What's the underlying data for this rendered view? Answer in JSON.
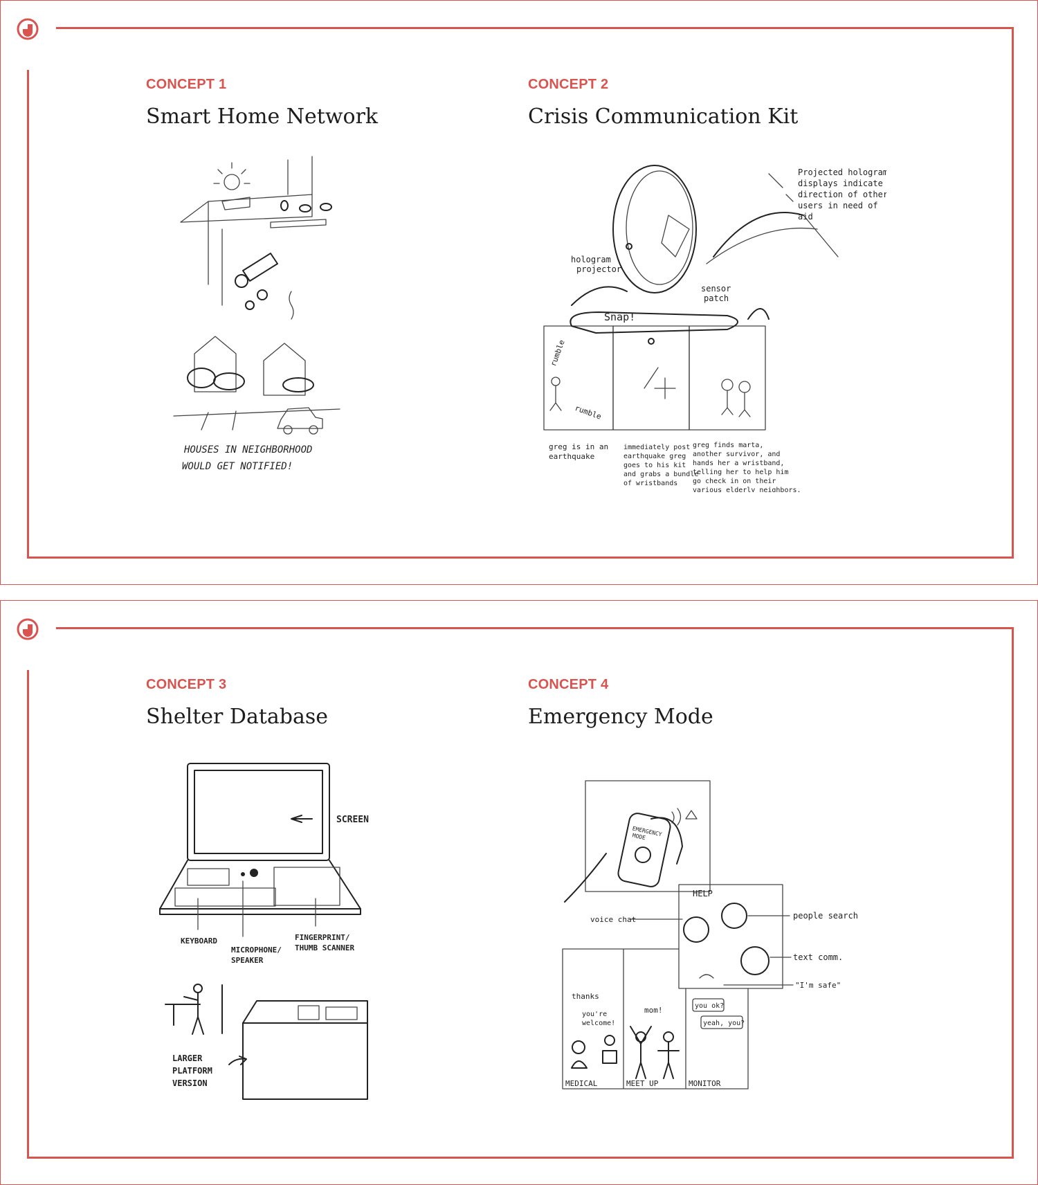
{
  "colors": {
    "accent": "#d9534f",
    "text": "#1d1d1d"
  },
  "slides": [
    {
      "concepts": [
        {
          "kicker": "CONCEPT 1",
          "title": "Smart Home Network",
          "sketch_notes": [
            "HOUSES IN NEIGHBORHOOD",
            "WOULD GET NOTIFIED!"
          ]
        },
        {
          "kicker": "CONCEPT 2",
          "title": "Crisis Communication Kit",
          "sketch_notes": [
            "Projected hologram",
            "displays indicate the",
            "direction of other",
            "users in need of",
            "aid",
            "hologram",
            "projector",
            "sensor",
            "patch",
            "Snap!",
            "rumble",
            "rumble",
            "greg is in an",
            "earthquake",
            "immediately post",
            "earthquake greg",
            "goes to his kit",
            "and grabs a bundle",
            "of wristbands",
            "greg finds marta,",
            "another survivor, and",
            "hands her a wristband,",
            "telling her to help him",
            "go check in on their",
            "various elderly neighbors."
          ]
        }
      ]
    },
    {
      "concepts": [
        {
          "kicker": "CONCEPT 3",
          "title": "Shelter Database",
          "sketch_notes": [
            "SCREEN",
            "KEYBOARD",
            "MICROPHONE/",
            "SPEAKER",
            "FINGERPRINT/",
            "THUMB SCANNER",
            "LARGER",
            "PLATFORM",
            "VERSION"
          ]
        },
        {
          "kicker": "CONCEPT 4",
          "title": "Emergency Mode",
          "sketch_notes": [
            "EMERGENCY",
            "MODE",
            "HELP",
            "voice chat",
            "people search",
            "text comm.",
            "\"I'm safe\"",
            "thanks",
            "you're",
            "welcome!",
            "mom!",
            "you ok?",
            "yeah, you?",
            "MEDICAL",
            "MEET UP",
            "MONITOR"
          ]
        }
      ]
    }
  ]
}
